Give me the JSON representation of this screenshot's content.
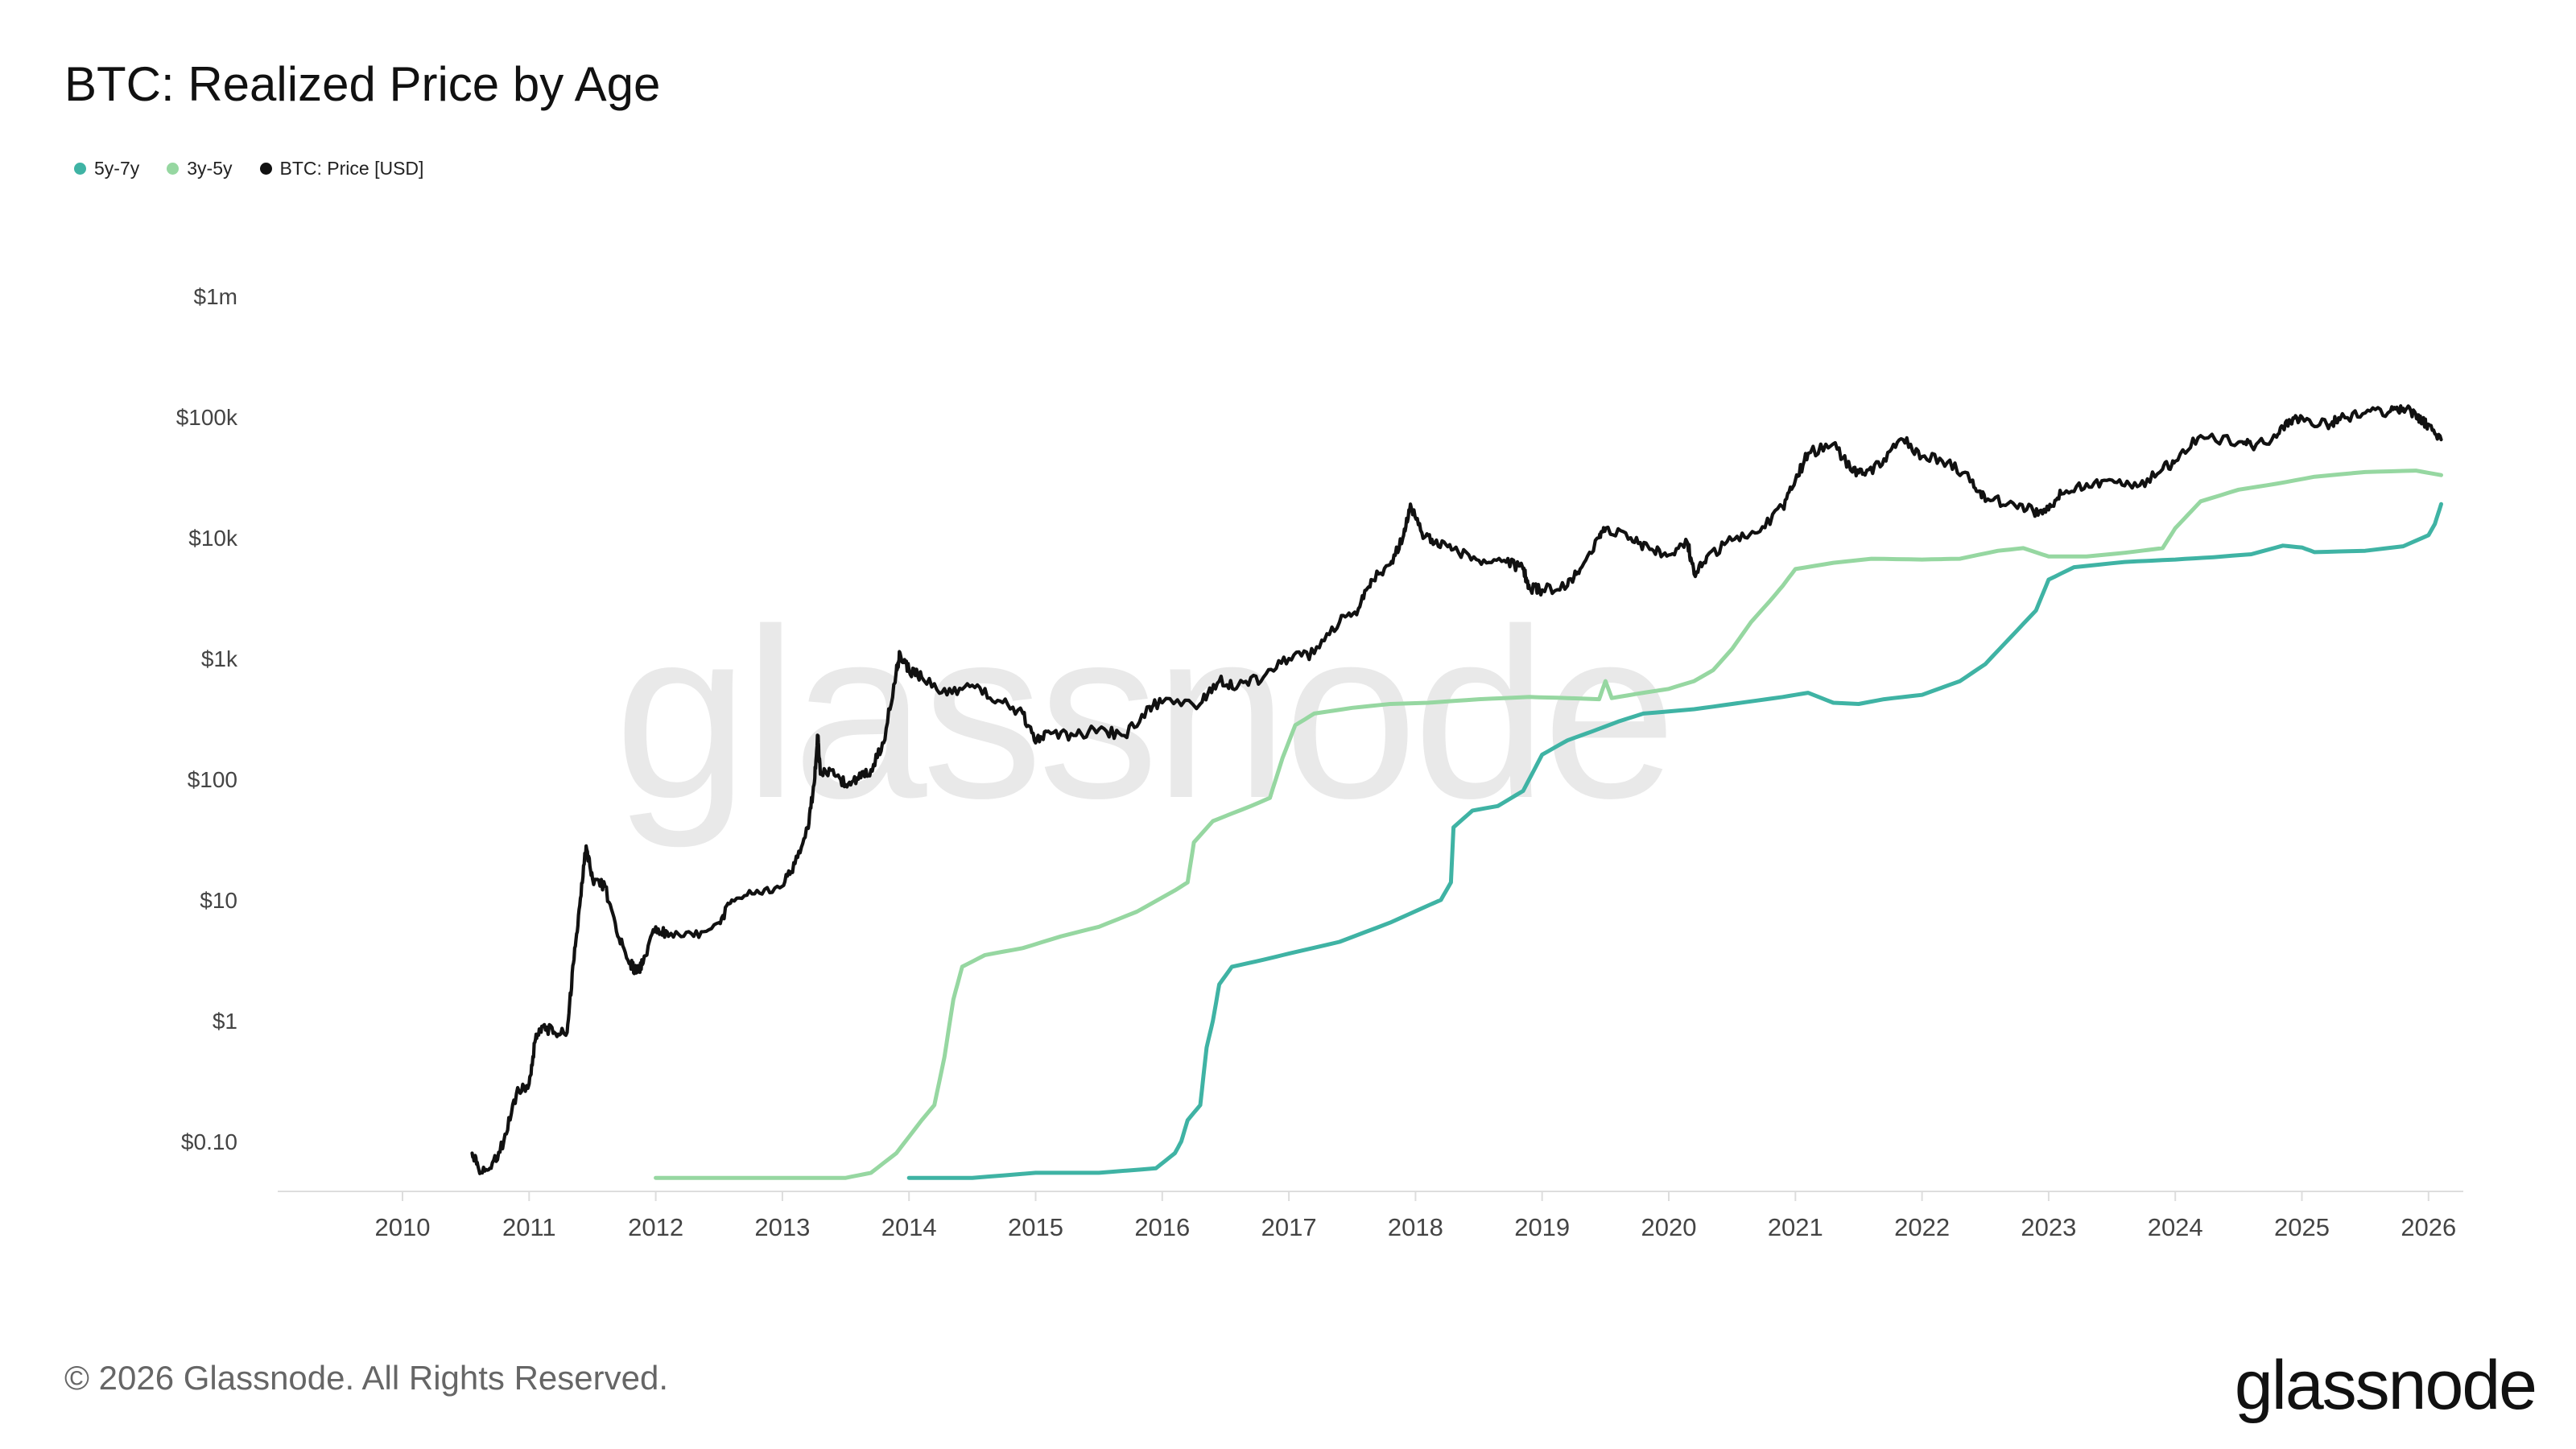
{
  "title": "BTC: Realized Price by Age",
  "watermark_text": "glassnode",
  "footer": {
    "copyright": "© 2026 Glassnode. All Rights Reserved.",
    "logo": "glassnode"
  },
  "colors": {
    "series_5y7y": "#3fb3a4",
    "series_3y5y": "#96d7a1",
    "price": "#111111",
    "axis": "#dddddd",
    "watermark": "#e9e9e9"
  },
  "chart_data": {
    "type": "line",
    "title": "BTC: Realized Price by Age",
    "y_scale": "log",
    "ylim": [
      0.04,
      1000000
    ],
    "xlim": [
      2009.0,
      2026.2
    ],
    "y_ticks": [
      {
        "value": 1000000,
        "label": "$1m"
      },
      {
        "value": 100000,
        "label": "$100k"
      },
      {
        "value": 10000,
        "label": "$10k"
      },
      {
        "value": 1000,
        "label": "$1k"
      },
      {
        "value": 100,
        "label": "$100"
      },
      {
        "value": 10,
        "label": "$10"
      },
      {
        "value": 1,
        "label": "$1"
      },
      {
        "value": 0.1,
        "label": "$0.10"
      }
    ],
    "x_ticks": [
      "2010",
      "2011",
      "2012",
      "2013",
      "2014",
      "2015",
      "2016",
      "2017",
      "2018",
      "2019",
      "2020",
      "2021",
      "2022",
      "2023",
      "2024",
      "2025",
      "2026"
    ],
    "grid": false,
    "legend_position": "top-left",
    "series": [
      {
        "name": "5y-7y",
        "color": "#3fb3a4",
        "points": [
          [
            2014.0,
            0.05
          ],
          [
            2014.5,
            0.05
          ],
          [
            2015.0,
            0.055
          ],
          [
            2015.5,
            0.055
          ],
          [
            2015.95,
            0.06
          ],
          [
            2016.1,
            0.08
          ],
          [
            2016.15,
            0.1
          ],
          [
            2016.2,
            0.15
          ],
          [
            2016.3,
            0.2
          ],
          [
            2016.35,
            0.6
          ],
          [
            2016.4,
            1.0
          ],
          [
            2016.45,
            2.0
          ],
          [
            2016.55,
            2.8
          ],
          [
            2016.8,
            3.2
          ],
          [
            2017.0,
            3.6
          ],
          [
            2017.4,
            4.5
          ],
          [
            2017.8,
            6.5
          ],
          [
            2018.1,
            9.0
          ],
          [
            2018.2,
            10.0
          ],
          [
            2018.28,
            14.0
          ],
          [
            2018.3,
            40.0
          ],
          [
            2018.45,
            55.0
          ],
          [
            2018.65,
            60.0
          ],
          [
            2018.85,
            80.0
          ],
          [
            2019.0,
            160.0
          ],
          [
            2019.2,
            210.0
          ],
          [
            2019.4,
            250.0
          ],
          [
            2019.6,
            300.0
          ],
          [
            2019.8,
            350.0
          ],
          [
            2020.2,
            380.0
          ],
          [
            2020.5,
            420.0
          ],
          [
            2020.9,
            480.0
          ],
          [
            2021.1,
            520.0
          ],
          [
            2021.3,
            430.0
          ],
          [
            2021.5,
            420.0
          ],
          [
            2021.7,
            460.0
          ],
          [
            2022.0,
            500.0
          ],
          [
            2022.3,
            650.0
          ],
          [
            2022.5,
            900.0
          ],
          [
            2022.7,
            1500.0
          ],
          [
            2022.9,
            2500.0
          ],
          [
            2023.0,
            4500.0
          ],
          [
            2023.2,
            5700.0
          ],
          [
            2023.6,
            6300.0
          ],
          [
            2024.0,
            6600.0
          ],
          [
            2024.3,
            6900.0
          ],
          [
            2024.6,
            7300.0
          ],
          [
            2024.85,
            8600.0
          ],
          [
            2025.0,
            8300.0
          ],
          [
            2025.1,
            7600.0
          ],
          [
            2025.5,
            7800.0
          ],
          [
            2025.8,
            8500.0
          ],
          [
            2026.0,
            10500.0
          ],
          [
            2026.05,
            13000.0
          ],
          [
            2026.1,
            19000.0
          ]
        ]
      },
      {
        "name": "3y-5y",
        "color": "#96d7a1",
        "points": [
          [
            2012.0,
            0.05
          ],
          [
            2012.5,
            0.05
          ],
          [
            2013.0,
            0.05
          ],
          [
            2013.5,
            0.05
          ],
          [
            2013.7,
            0.055
          ],
          [
            2013.9,
            0.08
          ],
          [
            2014.1,
            0.15
          ],
          [
            2014.2,
            0.2
          ],
          [
            2014.28,
            0.5
          ],
          [
            2014.35,
            1.5
          ],
          [
            2014.42,
            2.8
          ],
          [
            2014.6,
            3.5
          ],
          [
            2014.9,
            4.0
          ],
          [
            2015.2,
            5.0
          ],
          [
            2015.5,
            6.0
          ],
          [
            2015.8,
            8.0
          ],
          [
            2016.1,
            12.0
          ],
          [
            2016.2,
            14.0
          ],
          [
            2016.25,
            30.0
          ],
          [
            2016.4,
            45.0
          ],
          [
            2016.7,
            60.0
          ],
          [
            2016.85,
            70.0
          ],
          [
            2016.95,
            150.0
          ],
          [
            2017.05,
            280.0
          ],
          [
            2017.2,
            350.0
          ],
          [
            2017.5,
            390.0
          ],
          [
            2017.8,
            420.0
          ],
          [
            2018.1,
            430.0
          ],
          [
            2018.5,
            460.0
          ],
          [
            2018.9,
            480.0
          ],
          [
            2019.2,
            470.0
          ],
          [
            2019.45,
            460.0
          ],
          [
            2019.5,
            650.0
          ],
          [
            2019.55,
            470.0
          ],
          [
            2019.8,
            520.0
          ],
          [
            2020.0,
            560.0
          ],
          [
            2020.2,
            650.0
          ],
          [
            2020.35,
            800.0
          ],
          [
            2020.5,
            1200.0
          ],
          [
            2020.65,
            2000.0
          ],
          [
            2020.8,
            3000.0
          ],
          [
            2020.9,
            4000.0
          ],
          [
            2021.0,
            5500.0
          ],
          [
            2021.3,
            6200.0
          ],
          [
            2021.6,
            6700.0
          ],
          [
            2022.0,
            6600.0
          ],
          [
            2022.3,
            6700.0
          ],
          [
            2022.6,
            7800.0
          ],
          [
            2022.8,
            8200.0
          ],
          [
            2023.0,
            7000.0
          ],
          [
            2023.3,
            7000.0
          ],
          [
            2023.6,
            7500.0
          ],
          [
            2023.9,
            8200.0
          ],
          [
            2024.0,
            12000.0
          ],
          [
            2024.2,
            20000.0
          ],
          [
            2024.5,
            25000.0
          ],
          [
            2024.8,
            28000.0
          ],
          [
            2025.1,
            32000.0
          ],
          [
            2025.5,
            35000.0
          ],
          [
            2025.9,
            36000.0
          ],
          [
            2026.1,
            33000.0
          ]
        ]
      },
      {
        "name": "BTC: Price [USD]",
        "color": "#111111",
        "points": [
          [
            2010.55,
            0.08
          ],
          [
            2010.6,
            0.06
          ],
          [
            2010.7,
            0.06
          ],
          [
            2010.8,
            0.1
          ],
          [
            2010.9,
            0.25
          ],
          [
            2011.0,
            0.3
          ],
          [
            2011.05,
            0.7
          ],
          [
            2011.1,
            0.9
          ],
          [
            2011.2,
            0.8
          ],
          [
            2011.3,
            0.8
          ],
          [
            2011.35,
            3.0
          ],
          [
            2011.4,
            9.0
          ],
          [
            2011.45,
            28.0
          ],
          [
            2011.5,
            15.0
          ],
          [
            2011.6,
            13.0
          ],
          [
            2011.7,
            5.0
          ],
          [
            2011.8,
            3.0
          ],
          [
            2011.85,
            2.5
          ],
          [
            2011.9,
            3.0
          ],
          [
            2012.0,
            6.0
          ],
          [
            2012.1,
            5.0
          ],
          [
            2012.3,
            5.0
          ],
          [
            2012.5,
            6.5
          ],
          [
            2012.6,
            10.0
          ],
          [
            2012.8,
            12.0
          ],
          [
            2013.0,
            13.0
          ],
          [
            2013.1,
            20.0
          ],
          [
            2013.2,
            40.0
          ],
          [
            2013.25,
            90.0
          ],
          [
            2013.28,
            230.0
          ],
          [
            2013.3,
            110.0
          ],
          [
            2013.4,
            120.0
          ],
          [
            2013.5,
            90.0
          ],
          [
            2013.6,
            100.0
          ],
          [
            2013.7,
            120.0
          ],
          [
            2013.8,
            200.0
          ],
          [
            2013.9,
            800.0
          ],
          [
            2013.93,
            1100.0
          ],
          [
            2014.0,
            800.0
          ],
          [
            2014.1,
            700.0
          ],
          [
            2014.3,
            500.0
          ],
          [
            2014.5,
            600.0
          ],
          [
            2014.7,
            450.0
          ],
          [
            2014.9,
            350.0
          ],
          [
            2015.0,
            200.0
          ],
          [
            2015.1,
            250.0
          ],
          [
            2015.3,
            230.0
          ],
          [
            2015.5,
            260.0
          ],
          [
            2015.7,
            230.0
          ],
          [
            2015.9,
            400.0
          ],
          [
            2016.0,
            430.0
          ],
          [
            2016.3,
            420.0
          ],
          [
            2016.45,
            650.0
          ],
          [
            2016.6,
            600.0
          ],
          [
            2016.8,
            700.0
          ],
          [
            2017.0,
            1000.0
          ],
          [
            2017.2,
            1100.0
          ],
          [
            2017.4,
            2000.0
          ],
          [
            2017.55,
            2600.0
          ],
          [
            2017.65,
            4500.0
          ],
          [
            2017.8,
            6000.0
          ],
          [
            2017.9,
            10000.0
          ],
          [
            2017.96,
            19000.0
          ],
          [
            2018.05,
            11000.0
          ],
          [
            2018.15,
            9000.0
          ],
          [
            2018.3,
            8000.0
          ],
          [
            2018.5,
            6500.0
          ],
          [
            2018.7,
            6500.0
          ],
          [
            2018.85,
            5500.0
          ],
          [
            2018.9,
            3800.0
          ],
          [
            2019.0,
            3700.0
          ],
          [
            2019.2,
            4000.0
          ],
          [
            2019.3,
            5500.0
          ],
          [
            2019.45,
            10000.0
          ],
          [
            2019.5,
            12000.0
          ],
          [
            2019.7,
            10000.0
          ],
          [
            2019.85,
            8000.0
          ],
          [
            2020.0,
            7200.0
          ],
          [
            2020.15,
            9000.0
          ],
          [
            2020.2,
            5000.0
          ],
          [
            2020.3,
            7000.0
          ],
          [
            2020.5,
            9500.0
          ],
          [
            2020.7,
            11000.0
          ],
          [
            2020.9,
            18000.0
          ],
          [
            2021.0,
            30000.0
          ],
          [
            2021.1,
            50000.0
          ],
          [
            2021.3,
            60000.0
          ],
          [
            2021.45,
            35000.0
          ],
          [
            2021.55,
            33000.0
          ],
          [
            2021.7,
            45000.0
          ],
          [
            2021.85,
            65000.0
          ],
          [
            2022.0,
            47000.0
          ],
          [
            2022.2,
            42000.0
          ],
          [
            2022.4,
            30000.0
          ],
          [
            2022.5,
            20000.0
          ],
          [
            2022.7,
            20000.0
          ],
          [
            2022.88,
            16500.0
          ],
          [
            2023.0,
            17000.0
          ],
          [
            2023.1,
            23000.0
          ],
          [
            2023.3,
            28000.0
          ],
          [
            2023.5,
            30000.0
          ],
          [
            2023.7,
            26500.0
          ],
          [
            2023.9,
            37000.0
          ],
          [
            2024.0,
            43000.0
          ],
          [
            2024.2,
            70000.0
          ],
          [
            2024.5,
            62000.0
          ],
          [
            2024.6,
            58000.0
          ],
          [
            2024.8,
            68000.0
          ],
          [
            2024.9,
            95000.0
          ],
          [
            2025.0,
            100000.0
          ],
          [
            2025.2,
            85000.0
          ],
          [
            2025.3,
            95000.0
          ],
          [
            2025.5,
            108000.0
          ],
          [
            2025.7,
            112000.0
          ],
          [
            2025.8,
            118000.0
          ],
          [
            2025.9,
            105000.0
          ],
          [
            2025.95,
            90000.0
          ],
          [
            2026.0,
            87000.0
          ],
          [
            2026.1,
            65000.0
          ]
        ]
      }
    ]
  }
}
